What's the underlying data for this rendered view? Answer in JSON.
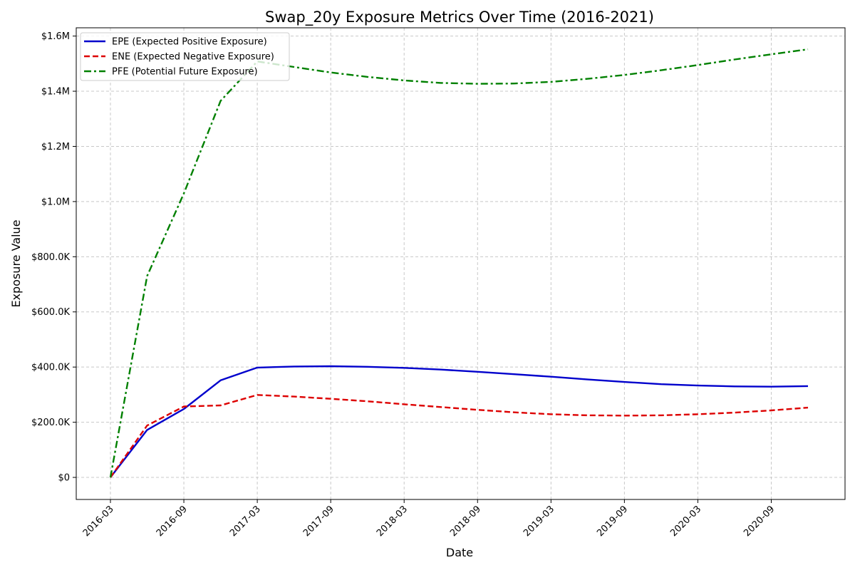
{
  "chart_data": {
    "type": "line",
    "title": "Swap_20y Exposure Metrics Over Time (2016-2021)",
    "xlabel": "Date",
    "ylabel": "Exposure Value",
    "x": [
      "2016-03",
      "2016-06",
      "2016-09",
      "2016-12",
      "2017-03",
      "2017-06",
      "2017-09",
      "2017-12",
      "2018-03",
      "2018-06",
      "2018-09",
      "2018-12",
      "2019-03",
      "2019-06",
      "2019-09",
      "2019-12",
      "2020-03",
      "2020-06",
      "2020-09",
      "2020-12"
    ],
    "x_ticks": [
      "2016-03",
      "2016-09",
      "2017-03",
      "2017-09",
      "2018-03",
      "2018-09",
      "2019-03",
      "2019-09",
      "2020-03",
      "2020-09"
    ],
    "y_ticks": [
      {
        "value": 0,
        "label": "$0"
      },
      {
        "value": 200000,
        "label": "$200.0K"
      },
      {
        "value": 400000,
        "label": "$400.0K"
      },
      {
        "value": 600000,
        "label": "$600.0K"
      },
      {
        "value": 800000,
        "label": "$800.0K"
      },
      {
        "value": 1000000,
        "label": "$1.0M"
      },
      {
        "value": 1200000,
        "label": "$1.2M"
      },
      {
        "value": 1400000,
        "label": "$1.4M"
      },
      {
        "value": 1600000,
        "label": "$1.6M"
      }
    ],
    "ylim": [
      -80000,
      1630000
    ],
    "grid": true,
    "legend_position": "top-left",
    "series": [
      {
        "name": "EPE (Expected Positive Exposure)",
        "color": "#0000cc",
        "style": "solid",
        "values": [
          0,
          172000,
          248000,
          352000,
          398000,
          402000,
          403000,
          401000,
          397000,
          391000,
          383000,
          374000,
          365000,
          355000,
          346000,
          338000,
          333000,
          330000,
          329000,
          331000
        ]
      },
      {
        "name": "ENE (Expected Negative Exposure)",
        "color": "#dd0000",
        "style": "dashed",
        "values": [
          0,
          188000,
          257000,
          261000,
          299000,
          293000,
          285000,
          276000,
          265000,
          255000,
          245000,
          236000,
          229000,
          225000,
          224000,
          225000,
          229000,
          235000,
          243000,
          253000
        ]
      },
      {
        "name": "PFE (Potential Future Exposure)",
        "color": "#008000",
        "style": "dashdot",
        "values": [
          0,
          730000,
          1030000,
          1365000,
          1508000,
          1488000,
          1468000,
          1452000,
          1439000,
          1430000,
          1427000,
          1428000,
          1434000,
          1445000,
          1459000,
          1476000,
          1495000,
          1515000,
          1534000,
          1552000
        ]
      }
    ]
  }
}
